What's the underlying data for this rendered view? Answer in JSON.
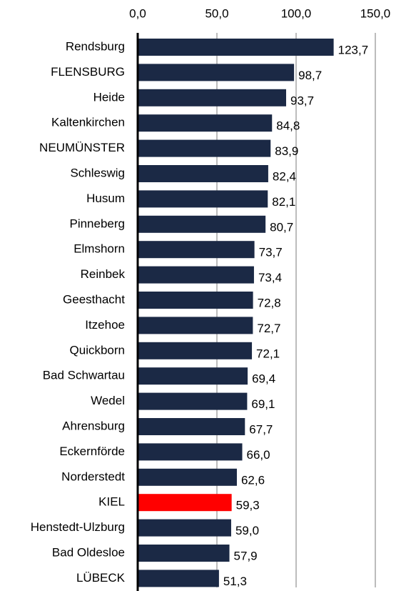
{
  "chart_data": {
    "type": "bar",
    "orientation": "horizontal",
    "categories": [
      "Rendsburg",
      "FLENSBURG",
      "Heide",
      "Kaltenkirchen",
      "NEUMÜNSTER",
      "Schleswig",
      "Husum",
      "Pinneberg",
      "Elmshorn",
      "Reinbek",
      "Geesthacht",
      "Itzehoe",
      "Quickborn",
      "Bad Schwartau",
      "Wedel",
      "Ahrensburg",
      "Eckernförde",
      "Norderstedt",
      "KIEL",
      "Henstedt-Ulzburg",
      "Bad Oldesloe",
      "LÜBECK"
    ],
    "values": [
      123.7,
      98.7,
      93.7,
      84.8,
      83.9,
      82.4,
      82.1,
      80.7,
      73.7,
      73.4,
      72.8,
      72.7,
      72.1,
      69.4,
      69.1,
      67.7,
      66.0,
      62.6,
      59.3,
      59.0,
      57.9,
      51.3
    ],
    "value_labels": [
      "123,7",
      "98,7",
      "93,7",
      "84,8",
      "83,9",
      "82,4",
      "82,1",
      "80,7",
      "73,7",
      "73,4",
      "72,8",
      "72,7",
      "72,1",
      "69,4",
      "69,1",
      "67,7",
      "66,0",
      "62,6",
      "59,3",
      "59,0",
      "57,9",
      "51,3"
    ],
    "colors": [
      "#1b2945",
      "#1b2945",
      "#1b2945",
      "#1b2945",
      "#1b2945",
      "#1b2945",
      "#1b2945",
      "#1b2945",
      "#1b2945",
      "#1b2945",
      "#1b2945",
      "#1b2945",
      "#1b2945",
      "#1b2945",
      "#1b2945",
      "#1b2945",
      "#1b2945",
      "#1b2945",
      "#ff0000",
      "#1b2945",
      "#1b2945",
      "#1b2945"
    ],
    "xlim": [
      0,
      150
    ],
    "xticks": [
      {
        "value": 0,
        "label": "0,0"
      },
      {
        "value": 50,
        "label": "50,0"
      },
      {
        "value": 100,
        "label": "100,0"
      },
      {
        "value": 150,
        "label": "150,0"
      }
    ],
    "grid": true
  }
}
